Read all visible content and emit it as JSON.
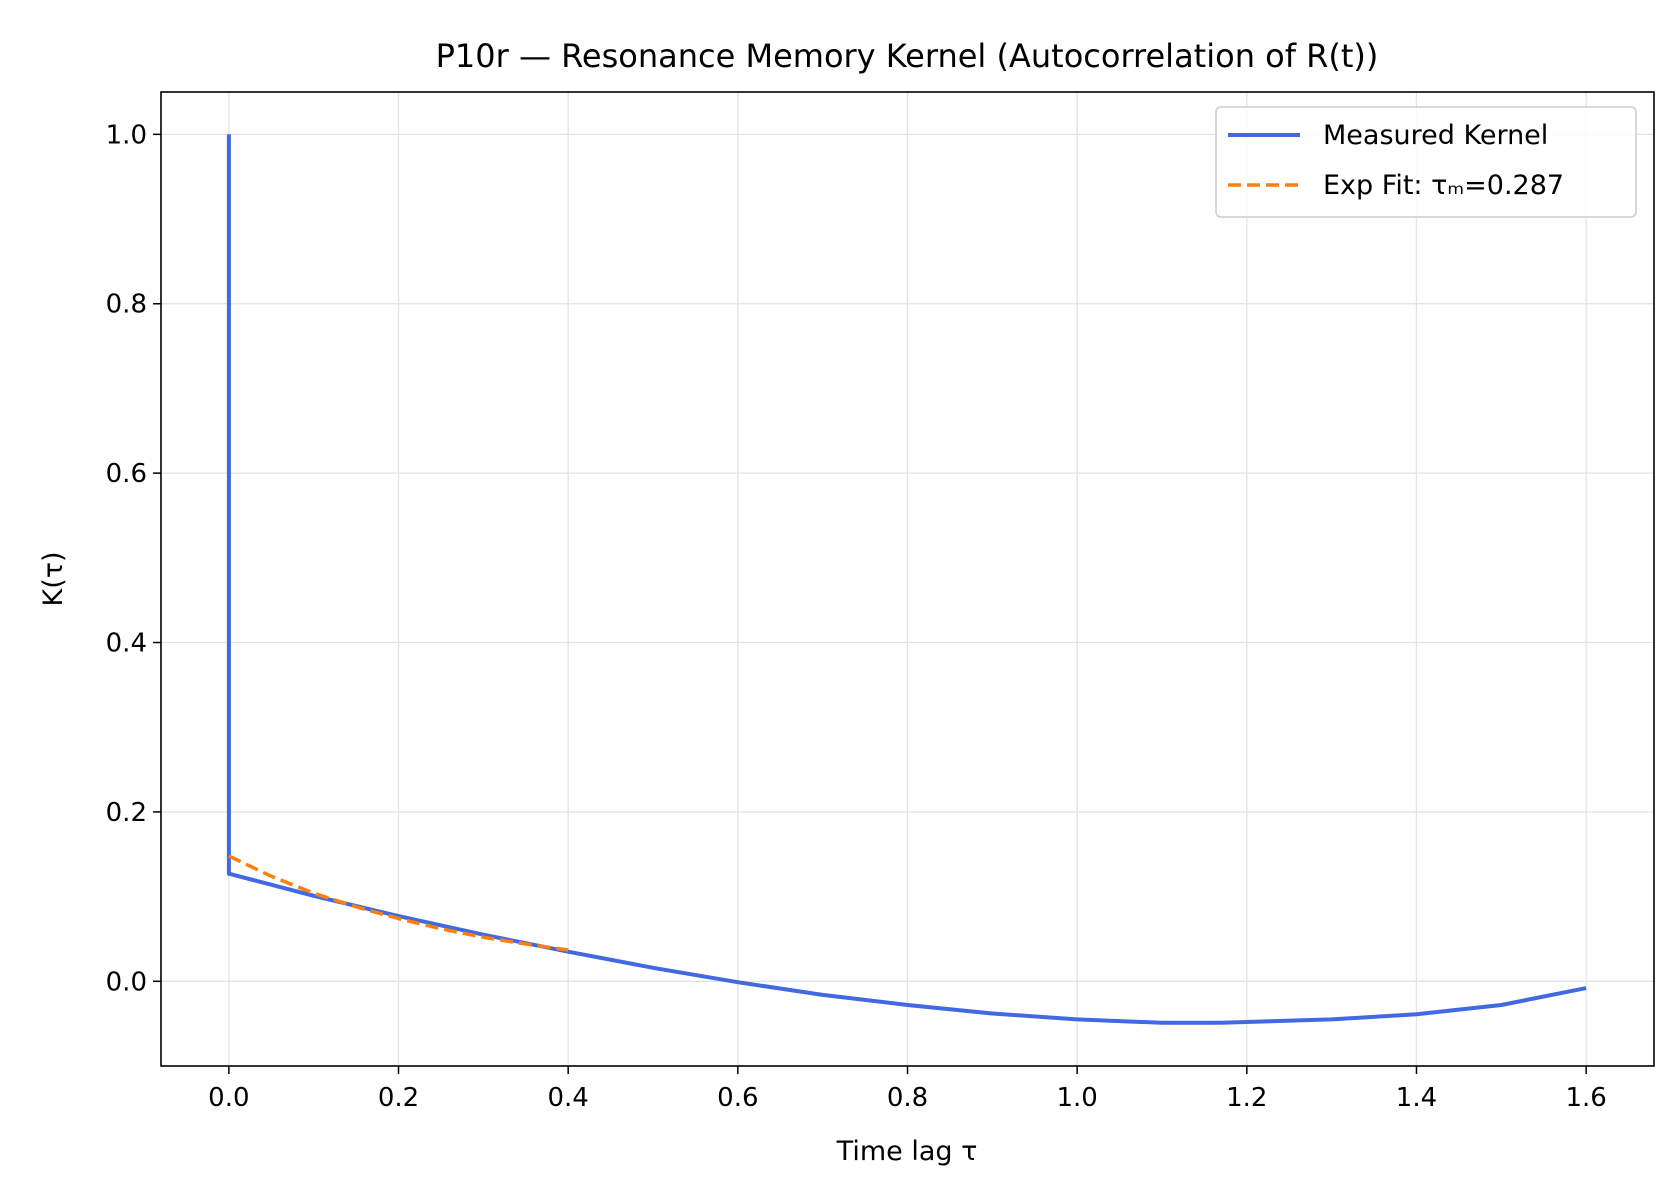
{
  "chart_data": {
    "type": "line",
    "title": "P10r — Resonance Memory Kernel (Autocorrelation of R(t))",
    "xlabel": "Time lag τ",
    "ylabel": "K(τ)",
    "xlim": [
      -0.08,
      1.68
    ],
    "ylim": [
      -0.1,
      1.05
    ],
    "xticks": [
      0.0,
      0.2,
      0.4,
      0.6,
      0.8,
      1.0,
      1.2,
      1.4,
      1.6
    ],
    "xtick_labels": [
      "0.0",
      "0.2",
      "0.4",
      "0.6",
      "0.8",
      "1.0",
      "1.2",
      "1.4",
      "1.6"
    ],
    "yticks": [
      0.0,
      0.2,
      0.4,
      0.6,
      0.8,
      1.0
    ],
    "ytick_labels": [
      "0.0",
      "0.2",
      "0.4",
      "0.6",
      "0.8",
      "1.0"
    ],
    "grid": true,
    "legend_position": "top-right",
    "series": [
      {
        "name": "Measured Kernel",
        "color": "#4169e1",
        "style": "solid",
        "x": [
          0.0,
          0.0,
          0.0,
          0.1,
          0.2,
          0.3,
          0.4,
          0.5,
          0.6,
          0.7,
          0.8,
          0.9,
          1.0,
          1.1,
          1.17,
          1.3,
          1.4,
          1.5,
          1.6
        ],
        "y": [
          1.0,
          0.15,
          0.127,
          0.101,
          0.077,
          0.055,
          0.035,
          0.016,
          -0.001,
          -0.016,
          -0.028,
          -0.038,
          -0.045,
          -0.049,
          -0.049,
          -0.045,
          -0.039,
          -0.028,
          -0.008
        ]
      },
      {
        "name": "Exp Fit: τₘ=0.287",
        "color": "#ff7f0e",
        "style": "dashed",
        "x": [
          0.0,
          0.05,
          0.1,
          0.15,
          0.2,
          0.25,
          0.3,
          0.35,
          0.4
        ],
        "y": [
          0.148,
          0.124,
          0.104,
          0.088,
          0.074,
          0.062,
          0.052,
          0.044,
          0.037
        ]
      }
    ]
  }
}
